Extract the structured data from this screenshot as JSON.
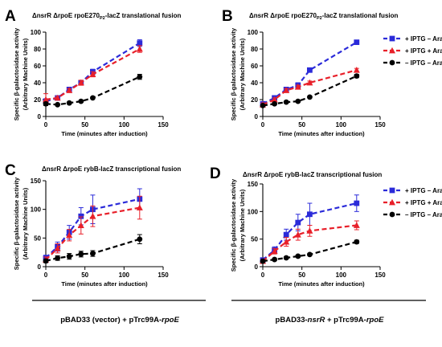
{
  "panels": [
    {
      "letter": "A",
      "title_pre": "ΔnsrR ΔrpoE rpoE270",
      "title_sub": "P2",
      "title_post": "-lacZ translational fusion",
      "ylabel": "Specific β-galactosidase activity",
      "ylabel2": "(Arbitrary Machine Units)",
      "xlabel": "Time (minutes after induction)",
      "show_legend": false
    },
    {
      "letter": "B",
      "title_pre": "ΔnsrR ΔrpoE rpoE270",
      "title_sub": "P2",
      "title_post": "-lacZ translational fusion",
      "ylabel": "Specific β-galactosidase activity",
      "ylabel2": "(Arbitrary Machine Units)",
      "xlabel": "Time (minutes after induction)",
      "show_legend": true
    },
    {
      "letter": "C",
      "title_pre": "ΔnsrR ΔrpoE rybB-lacZ transcriptional fusion",
      "title_sub": "",
      "title_post": "",
      "ylabel": "Specific β-galactosidase activity",
      "ylabel2": "(Arbitrary Machine Units)",
      "xlabel": "Time (minutes after induction)",
      "show_legend": false
    },
    {
      "letter": "D",
      "title_pre": "ΔnsrR ΔrpoE rybB-lacZ transcriptional fusion",
      "title_sub": "",
      "title_post": "",
      "ylabel": "Specific β-galactosidase activity",
      "ylabel2": "(Arbitrary Machine Units)",
      "xlabel": "Time (minutes after induction)",
      "show_legend": true
    }
  ],
  "legend": [
    {
      "label": "+ IPTG  – Ara",
      "color": "#2b2bd9",
      "marker": "square"
    },
    {
      "label": "+ IPTG  + Ara",
      "color": "#e8202a",
      "marker": "triangle"
    },
    {
      "label": "– IPTG  – Ara",
      "color": "#000000",
      "marker": "circle"
    }
  ],
  "footer": {
    "left": "pBAD33 (vector) + pTrc99A-rpoE",
    "right": "pBAD33-nsrR + pTrc99A-rpoE"
  },
  "chart_data": [
    {
      "type": "line",
      "x": [
        0,
        15,
        30,
        45,
        60,
        120
      ],
      "xlim": [
        0,
        150
      ],
      "ylim": [
        0,
        100
      ],
      "xticks": [
        0,
        50,
        100,
        150
      ],
      "yticks": [
        0,
        20,
        40,
        60,
        80,
        100
      ],
      "series": [
        {
          "name": "+ IPTG – Ara",
          "color": "#2b2bd9",
          "marker": "square",
          "values": [
            18,
            22,
            32,
            40,
            53,
            87
          ],
          "err": [
            3,
            2,
            2,
            2,
            3,
            4
          ]
        },
        {
          "name": "+ IPTG + Ara",
          "color": "#e8202a",
          "marker": "triangle",
          "values": [
            20,
            22,
            31,
            40,
            50,
            80
          ],
          "err": [
            7,
            2,
            2,
            3,
            3,
            4
          ]
        },
        {
          "name": "– IPTG – Ara",
          "color": "#000000",
          "marker": "circle",
          "values": [
            15,
            14,
            16,
            18,
            22,
            47
          ],
          "err": [
            2,
            1,
            1,
            1,
            1,
            3
          ]
        }
      ]
    },
    {
      "type": "line",
      "x": [
        0,
        15,
        30,
        45,
        60,
        120
      ],
      "xlim": [
        0,
        150
      ],
      "ylim": [
        0,
        100
      ],
      "xticks": [
        0,
        50,
        100,
        150
      ],
      "yticks": [
        0,
        20,
        40,
        60,
        80,
        100
      ],
      "series": [
        {
          "name": "+ IPTG – Ara",
          "color": "#2b2bd9",
          "marker": "square",
          "values": [
            15,
            22,
            32,
            37,
            55,
            88
          ],
          "err": [
            2,
            2,
            2,
            3,
            2,
            2
          ]
        },
        {
          "name": "+ IPTG + Ara",
          "color": "#e8202a",
          "marker": "triangle",
          "values": [
            14,
            20,
            31,
            35,
            40,
            55
          ],
          "err": [
            2,
            2,
            2,
            2,
            2,
            2
          ]
        },
        {
          "name": "– IPTG – Ara",
          "color": "#000000",
          "marker": "circle",
          "values": [
            13,
            15,
            17,
            18,
            23,
            48
          ],
          "err": [
            1,
            1,
            1,
            1,
            1,
            2
          ]
        }
      ]
    },
    {
      "type": "line",
      "x": [
        0,
        15,
        30,
        45,
        60,
        120
      ],
      "xlim": [
        0,
        150
      ],
      "ylim": [
        0,
        150
      ],
      "xticks": [
        0,
        50,
        100,
        150
      ],
      "yticks": [
        0,
        50,
        100,
        150
      ],
      "series": [
        {
          "name": "+ IPTG – Ara",
          "color": "#2b2bd9",
          "marker": "square",
          "values": [
            15,
            35,
            60,
            88,
            100,
            118
          ],
          "err": [
            5,
            8,
            12,
            15,
            25,
            18
          ]
        },
        {
          "name": "+ IPTG + Ara",
          "color": "#e8202a",
          "marker": "triangle",
          "values": [
            12,
            32,
            55,
            72,
            88,
            103
          ],
          "err": [
            5,
            8,
            10,
            15,
            18,
            20
          ]
        },
        {
          "name": "– IPTG – Ara",
          "color": "#000000",
          "marker": "circle",
          "values": [
            10,
            15,
            18,
            22,
            23,
            48
          ],
          "err": [
            3,
            4,
            5,
            5,
            5,
            8
          ]
        }
      ]
    },
    {
      "type": "line",
      "x": [
        0,
        15,
        30,
        45,
        60,
        120
      ],
      "xlim": [
        0,
        150
      ],
      "ylim": [
        0,
        150
      ],
      "xticks": [
        0,
        50,
        100,
        150
      ],
      "yticks": [
        0,
        50,
        100,
        150
      ],
      "series": [
        {
          "name": "+ IPTG – Ara",
          "color": "#2b2bd9",
          "marker": "square",
          "values": [
            12,
            30,
            58,
            80,
            95,
            115
          ],
          "err": [
            3,
            6,
            10,
            15,
            20,
            15
          ]
        },
        {
          "name": "+ IPTG + Ara",
          "color": "#e8202a",
          "marker": "triangle",
          "values": [
            10,
            28,
            45,
            58,
            65,
            75
          ],
          "err": [
            3,
            5,
            8,
            10,
            10,
            8
          ]
        },
        {
          "name": "– IPTG – Ara",
          "color": "#000000",
          "marker": "circle",
          "values": [
            10,
            13,
            16,
            19,
            22,
            45
          ],
          "err": [
            2,
            2,
            2,
            2,
            2,
            3
          ]
        }
      ]
    }
  ]
}
